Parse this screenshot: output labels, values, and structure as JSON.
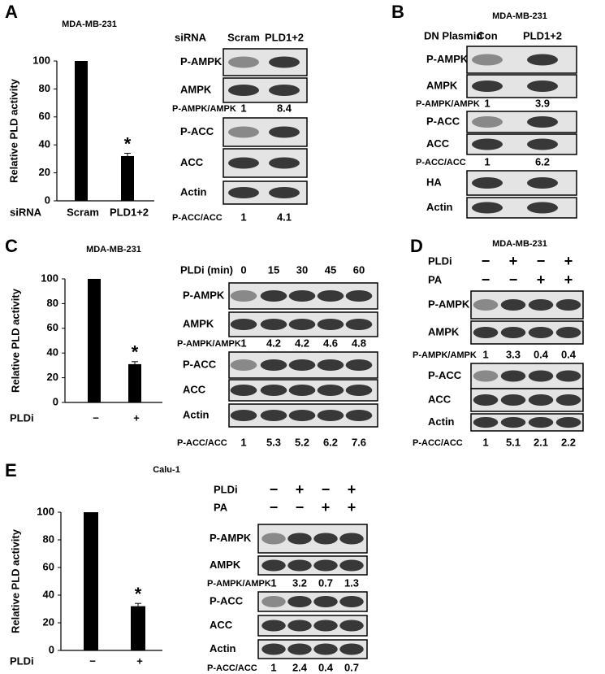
{
  "letters": [
    "A",
    "B",
    "C",
    "D",
    "E"
  ],
  "chart_data": [
    {
      "type": "bar",
      "title": "MDA-MB-231",
      "xlabel": "siRNA",
      "ylabel": "Relative PLD activity",
      "categories": [
        "Scram",
        "PLD1+2"
      ],
      "values": [
        100,
        32
      ],
      "errors": [
        null,
        2
      ],
      "annotation": "*",
      "color": "#000000",
      "ylim": [
        0,
        100
      ],
      "yticks": [
        0,
        20,
        40,
        60,
        80,
        100
      ]
    },
    {
      "type": "bar",
      "title": "MDA-MB-231",
      "xlabel": "PLDi",
      "ylabel": "Relative PLD activity",
      "categories": [
        "−",
        "+"
      ],
      "values": [
        100,
        31
      ],
      "errors": [
        null,
        2
      ],
      "annotation": "*",
      "color": "#000000",
      "ylim": [
        0,
        100
      ],
      "yticks": [
        0,
        20,
        40,
        60,
        80,
        100
      ]
    },
    {
      "type": "bar",
      "title": "Calu-1",
      "xlabel": "PLDi",
      "ylabel": "Relative PLD activity",
      "categories": [
        "−",
        "+"
      ],
      "values": [
        100,
        32
      ],
      "errors": [
        null,
        2
      ],
      "annotation": "*",
      "color": "#000000",
      "ylim": [
        0,
        100
      ],
      "yticks": [
        0,
        20,
        40,
        60,
        80,
        100
      ]
    }
  ],
  "blots": [
    {
      "conditions": [
        {
          "label": "siRNA",
          "lanes": [
            "Scram",
            "PLD1+2"
          ]
        }
      ],
      "rows": [
        {
          "name": "P-AMPK"
        },
        {
          "name": "AMPK"
        },
        {
          "ratio": "P-AMPK/AMPK",
          "values": [
            1,
            8.4
          ]
        },
        {
          "name": "P-ACC"
        },
        {
          "name": "ACC"
        },
        {
          "name": "Actin"
        },
        {
          "ratio": "P-ACC/ACC",
          "values": [
            1,
            4.1
          ]
        }
      ]
    },
    {
      "title": "MDA-MB-231",
      "conditions": [
        {
          "label": "DN Plasmid",
          "lanes": [
            "Con",
            "PLD1+2"
          ]
        }
      ],
      "rows": [
        {
          "name": "P-AMPK"
        },
        {
          "name": "AMPK"
        },
        {
          "ratio": "P-AMPK/AMPK",
          "values": [
            1,
            3.9
          ]
        },
        {
          "name": "P-ACC"
        },
        {
          "name": "ACC"
        },
        {
          "ratio": "P-ACC/ACC",
          "values": [
            1,
            6.2
          ]
        },
        {
          "name": "HA"
        },
        {
          "name": "Actin"
        }
      ]
    },
    {
      "conditions": [
        {
          "label": "PLDi (min)",
          "lanes": [
            0,
            15,
            30,
            45,
            60
          ]
        }
      ],
      "rows": [
        {
          "name": "P-AMPK"
        },
        {
          "name": "AMPK"
        },
        {
          "ratio": "P-AMPK/AMPK",
          "values": [
            1,
            4.2,
            4.2,
            4.6,
            4.8
          ]
        },
        {
          "name": "P-ACC"
        },
        {
          "name": "ACC"
        },
        {
          "name": "Actin"
        },
        {
          "ratio": "P-ACC/ACC",
          "values": [
            1,
            5.3,
            5.2,
            6.2,
            7.6
          ]
        }
      ]
    },
    {
      "title": "MDA-MB-231",
      "conditions": [
        {
          "label": "PLDi",
          "lanes": [
            "−",
            "+",
            "−",
            "+"
          ]
        },
        {
          "label": "PA",
          "lanes": [
            "−",
            "−",
            "+",
            "+"
          ]
        }
      ],
      "rows": [
        {
          "name": "P-AMPK"
        },
        {
          "name": "AMPK"
        },
        {
          "ratio": "P-AMPK/AMPK",
          "values": [
            1,
            3.3,
            0.4,
            0.4
          ]
        },
        {
          "name": "P-ACC"
        },
        {
          "name": "ACC"
        },
        {
          "name": "Actin"
        },
        {
          "ratio": "P-ACC/ACC",
          "values": [
            1,
            5.1,
            2.1,
            2.2
          ]
        }
      ]
    },
    {
      "conditions": [
        {
          "label": "PLDi",
          "lanes": [
            "−",
            "+",
            "−",
            "+"
          ]
        },
        {
          "label": "PA",
          "lanes": [
            "−",
            "−",
            "+",
            "+"
          ]
        }
      ],
      "rows": [
        {
          "name": "P-AMPK"
        },
        {
          "name": "AMPK"
        },
        {
          "ratio": "P-AMPK/AMPK",
          "values": [
            1,
            3.2,
            0.7,
            1.3
          ]
        },
        {
          "name": "P-ACC"
        },
        {
          "name": "ACC"
        },
        {
          "name": "Actin"
        },
        {
          "ratio": "P-ACC/ACC",
          "values": [
            1,
            2.4,
            0.4,
            0.7
          ]
        }
      ]
    }
  ]
}
